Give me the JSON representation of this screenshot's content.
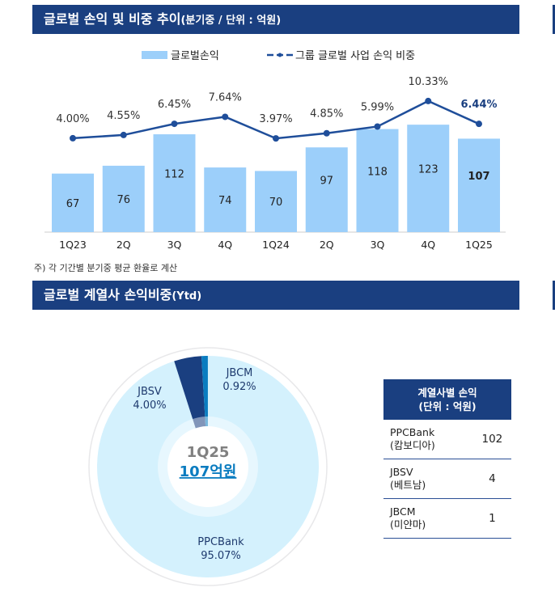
{
  "section1": {
    "title": "글로벌 손익 및 비중 추이",
    "title_suffix": "(분기중 / 단위 : 억원)",
    "note": "주) 각 기간별 분기중 평균 환율로 계산"
  },
  "section2": {
    "title": "글로벌 계열사 손익비중",
    "title_suffix": "(Ytd)"
  },
  "chart_data": [
    {
      "type": "bar+line",
      "categories": [
        "1Q23",
        "2Q",
        "3Q",
        "4Q",
        "1Q24",
        "2Q",
        "3Q",
        "4Q",
        "1Q25"
      ],
      "series": [
        {
          "name": "글로벌손익",
          "type": "bar",
          "values": [
            67,
            76,
            112,
            74,
            70,
            97,
            118,
            123,
            107
          ],
          "labels": [
            "67",
            "76",
            "112",
            "74",
            "70",
            "97",
            "118",
            "123",
            "107"
          ],
          "color": "#9ccffa"
        },
        {
          "name": "그룹 글로벌 사업 손익 비중",
          "type": "line",
          "values": [
            4.0,
            4.55,
            6.45,
            7.64,
            3.97,
            4.85,
            5.99,
            10.33,
            6.44
          ],
          "labels": [
            "4.00%",
            "4.55%",
            "6.45%",
            "7.64%",
            "3.97%",
            "4.85%",
            "5.99%",
            "10.33%",
            "6.44%"
          ],
          "color": "#1f4e9a"
        }
      ],
      "legend": "top",
      "grid": false
    },
    {
      "type": "pie",
      "donut": true,
      "center_label": "1Q25",
      "center_value": "107억원",
      "slices": [
        {
          "name": "PPCBank",
          "value": 95.07,
          "label": "95.07%",
          "color": "#d4f1fd"
        },
        {
          "name": "JBSV",
          "value": 4.0,
          "label": "4.00%",
          "color": "#1a3f80"
        },
        {
          "name": "JBCM",
          "value": 0.92,
          "label": "0.92%",
          "color": "#0a7cc0"
        }
      ]
    }
  ],
  "table": {
    "header": [
      "계열사별 손익",
      "(단위 : 억원)"
    ],
    "rows": [
      {
        "name": "PPCBank",
        "country": "(캄보디아)",
        "value": "102"
      },
      {
        "name": "JBSV",
        "country": "(베트남)",
        "value": "4"
      },
      {
        "name": "JBCM",
        "country": "(미얀마)",
        "value": "1"
      }
    ]
  }
}
